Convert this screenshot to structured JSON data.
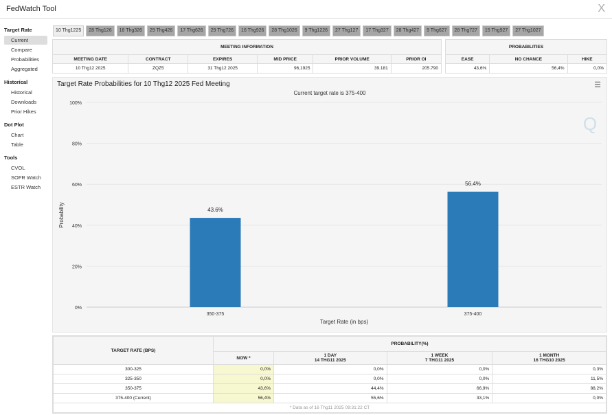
{
  "app": {
    "title": "FedWatch Tool",
    "close": "X"
  },
  "sidebar": [
    {
      "heading": "Target Rate",
      "items": [
        "Current",
        "Compare",
        "Probabilities",
        "Aggregated"
      ]
    },
    {
      "heading": "Historical",
      "items": [
        "Historical",
        "Downloads",
        "Prior Hikes"
      ]
    },
    {
      "heading": "Dot Plot",
      "items": [
        "Chart",
        "Table"
      ]
    },
    {
      "heading": "Tools",
      "items": [
        "CVOL",
        "SOFR Watch",
        "ESTR Watch"
      ]
    }
  ],
  "tabs": [
    "10 Thg1225",
    "28 Thg126",
    "18 Thg326",
    "29 Thg426",
    "17 Thg626",
    "29 Thg726",
    "16 Thg926",
    "28 Thg1026",
    "9 Thg1226",
    "27 Thg127",
    "17 Thg327",
    "28 Thg427",
    "9 Thg627",
    "28 Thg727",
    "15 Thg927",
    "27 Thg1027"
  ],
  "meeting_info": {
    "title": "MEETING INFORMATION",
    "headers": [
      "MEETING DATE",
      "CONTRACT",
      "EXPIRES",
      "MID PRICE",
      "PRIOR VOLUME",
      "PRIOR OI"
    ],
    "values": [
      "10 Thg12 2025",
      "ZQZ5",
      "31 Thg12 2025",
      "96,1925",
      "39.181",
      "205.790"
    ]
  },
  "probabilities": {
    "title": "PROBABILITIES",
    "headers": [
      "EASE",
      "NO CHANCE",
      "HIKE"
    ],
    "values": [
      "43,6%",
      "56,4%",
      "0,0%"
    ]
  },
  "chart": {
    "menu_icon": "hamburger-icon",
    "watermark": "Q"
  },
  "chart_data": {
    "type": "bar",
    "title": "Target Rate Probabilities for 10 Thg12 2025 Fed Meeting",
    "subtitle": "Current target rate is 375-400",
    "xlabel": "Target Rate (in bps)",
    "ylabel": "Probability",
    "categories": [
      "350-375",
      "375-400"
    ],
    "values": [
      43.6,
      56.4
    ],
    "data_labels": [
      "43.6%",
      "56.4%"
    ],
    "ylim": [
      0,
      100
    ],
    "yticks": [
      "0%",
      "20%",
      "40%",
      "60%",
      "80%",
      "100%"
    ],
    "color": "#2b7bb9",
    "grid": true
  },
  "bottom_table": {
    "col1": "TARGET RATE (BPS)",
    "group": "PROBABILITY(%)",
    "headers": [
      {
        "l1": "NOW *",
        "l2": ""
      },
      {
        "l1": "1 DAY",
        "l2": "14 THG11 2025"
      },
      {
        "l1": "1 WEEK",
        "l2": "7 THG11 2025"
      },
      {
        "l1": "1 MONTH",
        "l2": "16 THG10 2025"
      }
    ],
    "rows": [
      [
        "300-325",
        "0,0%",
        "0,0%",
        "0,0%",
        "0,3%"
      ],
      [
        "325-350",
        "0,0%",
        "0,0%",
        "0,0%",
        "11,5%"
      ],
      [
        "350-375",
        "43,6%",
        "44,4%",
        "66,9%",
        "88,2%"
      ],
      [
        "375-400 (Current)",
        "56,4%",
        "55,6%",
        "33,1%",
        "0,0%"
      ]
    ],
    "footnote": "* Data as of 16 Thg11 2025 09:31:22 CT"
  }
}
